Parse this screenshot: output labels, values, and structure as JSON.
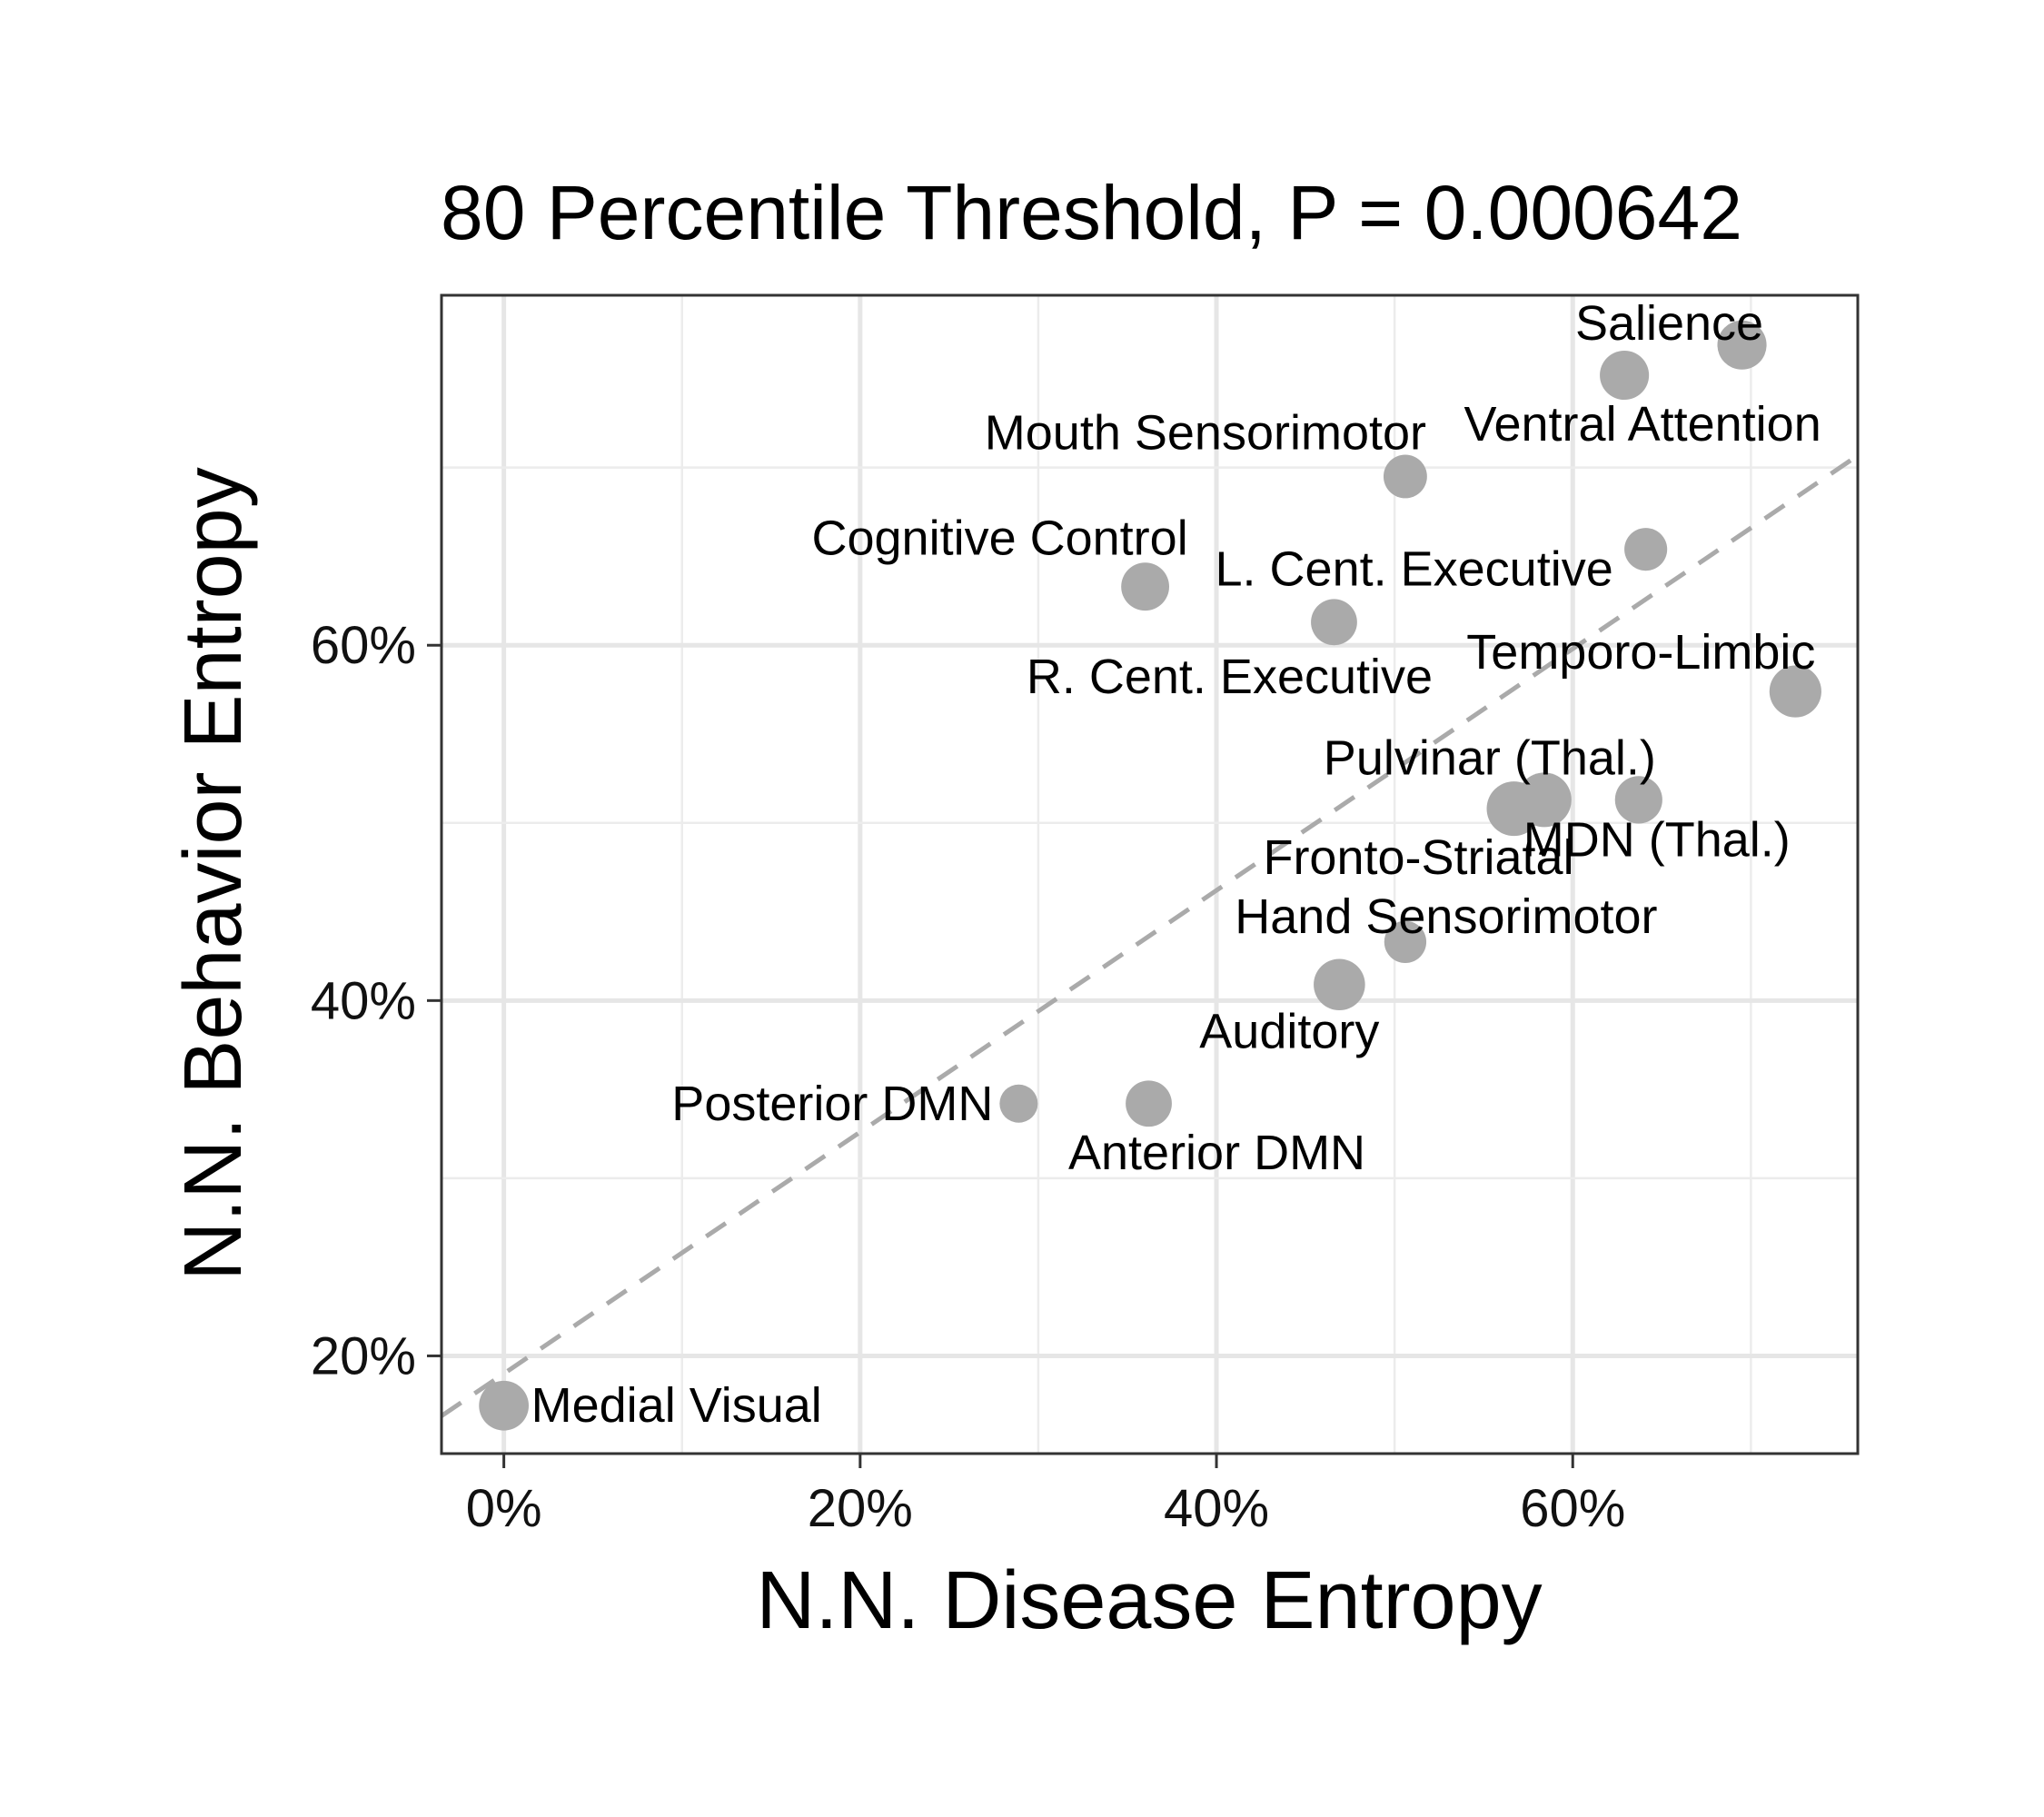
{
  "chart_data": {
    "type": "scatter",
    "title": "80 Percentile Threshold, P = 0.000642",
    "xlabel": "N.N. Disease Entropy",
    "ylabel": "N.N. Behavior Entropy",
    "x_range": [
      -0.035,
      0.76
    ],
    "y_range": [
      0.145,
      0.797
    ],
    "x_ticks": [
      0,
      0.2,
      0.4,
      0.6
    ],
    "x_tick_labels": [
      "0%",
      "20%",
      "40%",
      "60%"
    ],
    "y_ticks": [
      0.2,
      0.4,
      0.6
    ],
    "y_tick_labels": [
      "20%",
      "40%",
      "60%"
    ],
    "grid": true,
    "point_color": "#aaaaaa",
    "fit_line": {
      "style": "dashed",
      "color": "#aaaaaa",
      "intercept": 0.19,
      "slope": 0.68
    },
    "points": [
      {
        "label": "Salience",
        "x": 0.695,
        "y": 0.769,
        "size": 3.0
      },
      {
        "label": "Ventral Attention",
        "x": 0.629,
        "y": 0.752,
        "size": 3.0
      },
      {
        "label": "Mouth Sensorimotor",
        "x": 0.506,
        "y": 0.695,
        "size": 2.1
      },
      {
        "label": "Cognitive Control",
        "x": 0.36,
        "y": 0.633,
        "size": 2.8
      },
      {
        "label": "L. Cent. Executive",
        "x": 0.641,
        "y": 0.654,
        "size": 2.0
      },
      {
        "label": "R. Cent. Executive",
        "x": 0.466,
        "y": 0.613,
        "size": 2.5
      },
      {
        "label": "Temporo-Limbic",
        "x": 0.725,
        "y": 0.574,
        "size": 3.5
      },
      {
        "label": "Pulvinar (Thal.)",
        "x": 0.584,
        "y": 0.513,
        "size": 4.0
      },
      {
        "label": "Fronto-Striatal",
        "x": 0.567,
        "y": 0.508,
        "size": 4.0
      },
      {
        "label": "MDN (Thal.)",
        "x": 0.637,
        "y": 0.513,
        "size": 2.7
      },
      {
        "label": "Hand Sensorimotor",
        "x": 0.506,
        "y": 0.433,
        "size": 1.9
      },
      {
        "label": "Auditory",
        "x": 0.469,
        "y": 0.409,
        "size": 3.4
      },
      {
        "label": "Posterior DMN",
        "x": 0.289,
        "y": 0.342,
        "size": 1.4
      },
      {
        "label": "Anterior DMN",
        "x": 0.362,
        "y": 0.342,
        "size": 2.5
      },
      {
        "label": "Medial Visual",
        "x": 0.0,
        "y": 0.172,
        "size": 3.1
      }
    ]
  }
}
